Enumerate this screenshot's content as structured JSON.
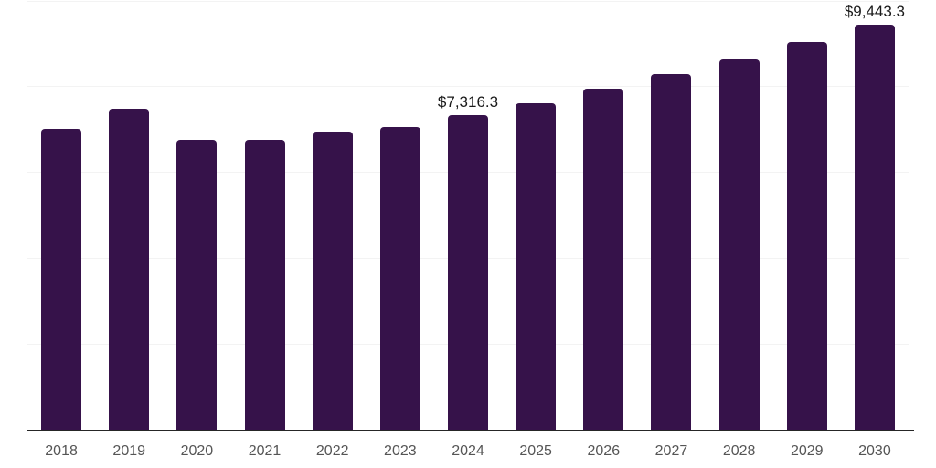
{
  "chart_data": {
    "type": "bar",
    "title": "",
    "xlabel": "",
    "ylabel": "",
    "categories": [
      "2018",
      "2019",
      "2020",
      "2021",
      "2022",
      "2023",
      "2024",
      "2025",
      "2026",
      "2027",
      "2028",
      "2029",
      "2030"
    ],
    "values": [
      7000,
      7470,
      6760,
      6760,
      6940,
      7040,
      7316.3,
      7610,
      7945,
      8280,
      8635,
      9030,
      9443.3
    ],
    "data_labels": [
      null,
      null,
      null,
      null,
      null,
      null,
      "$7,316.3",
      null,
      null,
      null,
      null,
      null,
      "$9,443.3"
    ],
    "ylim": [
      0,
      10000
    ],
    "grid_interval": 2000,
    "grid": true,
    "legend": false,
    "colors": {
      "bar": "#36124a",
      "axis_line": "#262626",
      "tick_label": "#555555",
      "data_label": "#1a1a1a",
      "gridline": "#f3f3f3",
      "background": "#ffffff"
    }
  }
}
